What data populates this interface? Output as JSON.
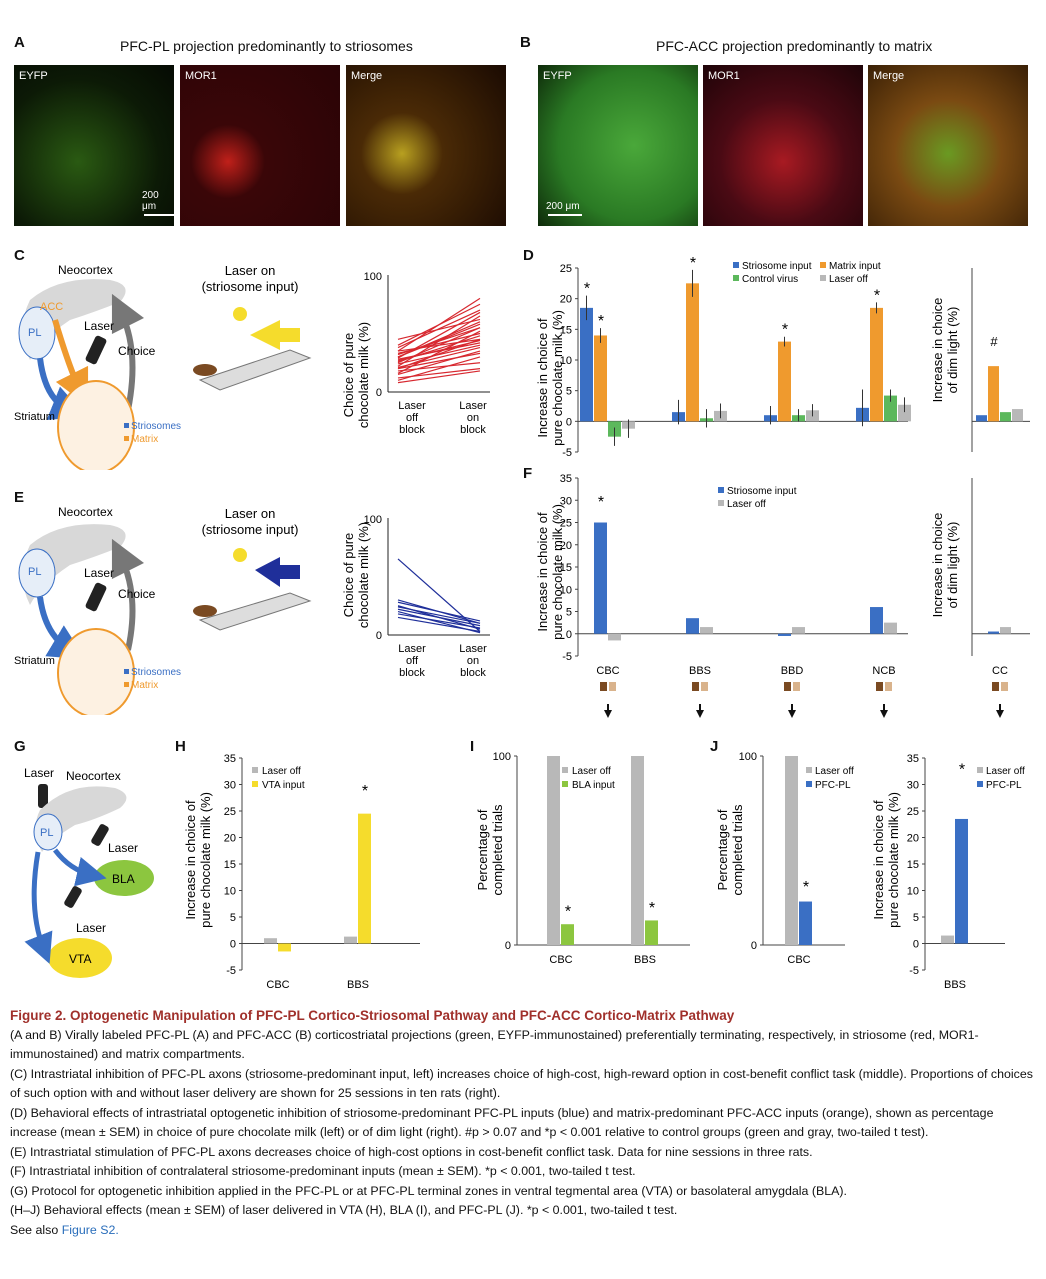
{
  "panelA": {
    "letter": "A",
    "title": "PFC-PL projection predominantly to striosomes",
    "images": [
      {
        "label": "EYFP"
      },
      {
        "label": "MOR1"
      },
      {
        "label": "Merge"
      }
    ],
    "scale": "200 μm"
  },
  "panelB": {
    "letter": "B",
    "title": "PFC-ACC projection predominantly to matrix",
    "images": [
      {
        "label": "EYFP"
      },
      {
        "label": "MOR1"
      },
      {
        "label": "Merge"
      }
    ],
    "scale": "200 μm"
  },
  "panelC": {
    "letter": "C",
    "neocortex": "Neocortex",
    "acc": "ACC",
    "pl": "PL",
    "laser": "Laser",
    "choice": "Choice",
    "striatum": "Striatum",
    "striosomes": "Striosomes",
    "matrix": "Matrix",
    "maze_title_1": "Laser on",
    "maze_title_2": "(striosome input)",
    "ylabel_1": "Choice of pure",
    "ylabel_2": "chocolate milk (%)",
    "ytick_top": "100",
    "ytick_bot": "0",
    "x1": [
      "Laser",
      "off",
      "block"
    ],
    "x2": [
      "Laser",
      "on",
      "block"
    ]
  },
  "panelE": {
    "letter": "E",
    "neocortex": "Neocortex",
    "pl": "PL",
    "laser": "Laser",
    "choice": "Choice",
    "striatum": "Striatum",
    "striosomes": "Striosomes",
    "matrix": "Matrix",
    "maze_title_1": "Laser on",
    "maze_title_2": "(striosome input)",
    "ylabel_1": "Choice of pure",
    "ylabel_2": "chocolate milk (%)",
    "ytick_top": "100",
    "ytick_bot": "0",
    "x1": [
      "Laser",
      "off",
      "block"
    ],
    "x2": [
      "Laser",
      "on",
      "block"
    ]
  },
  "panelD": {
    "letter": "D",
    "ylabel_1": "Increase in choice of",
    "ylabel_2": "pure chocolate milk (%)",
    "ylabel_right_1": "Increase in choice",
    "ylabel_right_2": "of dim light (%)",
    "legend": [
      "Striosome input",
      "Matrix input",
      "Control virus",
      "Laser off"
    ]
  },
  "panelF": {
    "letter": "F",
    "ylabel_1": "Increase in choice of",
    "ylabel_2": "pure chocolate milk (%)",
    "ylabel_right_1": "Increase in choice",
    "ylabel_right_2": "of dim light (%)",
    "legend": [
      "Striosome input",
      "Laser off"
    ],
    "categories": [
      "CBC",
      "BBS",
      "BBD",
      "NCB",
      "CC"
    ]
  },
  "panelG": {
    "letter": "G",
    "laser": "Laser",
    "neocortex": "Neocortex",
    "pl": "PL",
    "bla": "BLA",
    "vta": "VTA"
  },
  "panelH": {
    "letter": "H",
    "ylabel_1": "Increase in choice of",
    "ylabel_2": "pure chocolate milk (%)",
    "legend": [
      "Laser off",
      "VTA input"
    ]
  },
  "panelI": {
    "letter": "I",
    "ylabel_1": "Percentage of",
    "ylabel_2": "completed trials",
    "legend": [
      "Laser off",
      "BLA input"
    ]
  },
  "panelJ": {
    "letter": "J",
    "ylabel_1": "Percentage of",
    "ylabel_2": "completed trials",
    "ylabel2_1": "Increase in choice of",
    "ylabel2_2": "pure chocolate milk (%)",
    "legend": [
      "Laser off",
      "PFC-PL"
    ]
  },
  "colors": {
    "striosome": "#3a6fc4",
    "matrix": "#ef9a2e",
    "control": "#5cb85c",
    "laser_off": "#b8b8b8",
    "vta": "#f5dc2c",
    "bla": "#8cc63f",
    "caption_title": "#a0302b",
    "link": "#2a6ebb"
  },
  "chart_data": [
    {
      "type": "bar",
      "panel": "D",
      "categories": [
        "CBC",
        "BBS",
        "BBD",
        "NCB"
      ],
      "ylim": [
        -5,
        25
      ],
      "yticks": [
        -5,
        0,
        5,
        10,
        15,
        20,
        25
      ],
      "series": [
        {
          "name": "Striosome input",
          "values": [
            18.5,
            1.5,
            1,
            2.2
          ],
          "errors": [
            2,
            2,
            1.5,
            3
          ]
        },
        {
          "name": "Matrix input",
          "values": [
            14,
            22.5,
            13,
            18.5
          ],
          "errors": [
            1.2,
            2.2,
            0.8,
            0.9
          ]
        },
        {
          "name": "Control virus",
          "values": [
            -2.5,
            0.5,
            1,
            4.2
          ],
          "errors": [
            1.5,
            1.5,
            1,
            1
          ]
        },
        {
          "name": "Laser off",
          "values": [
            -1.2,
            1.7,
            1.8,
            2.7
          ],
          "errors": [
            1.5,
            1.2,
            1,
            1.2
          ]
        }
      ],
      "annotations": [
        "*",
        "*",
        "*",
        "*",
        "*"
      ]
    },
    {
      "type": "bar",
      "panel": "D-right",
      "categories": [
        "CC"
      ],
      "series": [
        {
          "name": "Striosome input",
          "values": [
            1
          ]
        },
        {
          "name": "Matrix input",
          "values": [
            9
          ]
        },
        {
          "name": "Control virus",
          "values": [
            1.5
          ]
        },
        {
          "name": "Laser off",
          "values": [
            2
          ]
        }
      ],
      "annotations": [
        "#"
      ]
    },
    {
      "type": "bar",
      "panel": "F",
      "categories": [
        "CBC",
        "BBS",
        "BBD",
        "NCB"
      ],
      "ylim": [
        -5,
        35
      ],
      "yticks": [
        -5,
        0,
        5,
        10,
        15,
        20,
        25,
        30,
        35
      ],
      "series": [
        {
          "name": "Striosome input",
          "values": [
            25,
            3.5,
            -0.5,
            6
          ]
        },
        {
          "name": "Laser off",
          "values": [
            -1.5,
            1.5,
            1.5,
            2.5
          ]
        }
      ],
      "annotations": [
        "*"
      ]
    },
    {
      "type": "bar",
      "panel": "F-right",
      "categories": [
        "CC"
      ],
      "series": [
        {
          "name": "Striosome input",
          "values": [
            0.5
          ]
        },
        {
          "name": "Laser off",
          "values": [
            1.5
          ]
        }
      ]
    },
    {
      "type": "bar",
      "panel": "H",
      "categories": [
        "CBC",
        "BBS"
      ],
      "ylim": [
        -5,
        35
      ],
      "yticks": [
        -5,
        0,
        5,
        10,
        15,
        20,
        25,
        30,
        35
      ],
      "series": [
        {
          "name": "Laser off",
          "values": [
            1,
            1.3
          ]
        },
        {
          "name": "VTA input",
          "values": [
            -1.5,
            24.5
          ]
        }
      ],
      "annotations": [
        "*"
      ]
    },
    {
      "type": "bar",
      "panel": "I",
      "categories": [
        "CBC",
        "BBS"
      ],
      "ylim": [
        0,
        100
      ],
      "yticks": [
        0,
        100
      ],
      "series": [
        {
          "name": "Laser off",
          "values": [
            100,
            100
          ]
        },
        {
          "name": "BLA input",
          "values": [
            11,
            13
          ]
        }
      ],
      "annotations": [
        "*",
        "*"
      ]
    },
    {
      "type": "bar",
      "panel": "J-left",
      "categories": [
        "CBC"
      ],
      "ylim": [
        0,
        100
      ],
      "yticks": [
        0,
        100
      ],
      "series": [
        {
          "name": "Laser off",
          "values": [
            100
          ]
        },
        {
          "name": "PFC-PL",
          "values": [
            23
          ]
        }
      ],
      "annotations": [
        "*"
      ]
    },
    {
      "type": "bar",
      "panel": "J-right",
      "categories": [
        "BBS"
      ],
      "ylim": [
        -5,
        35
      ],
      "yticks": [
        -5,
        0,
        5,
        10,
        15,
        20,
        25,
        30,
        35
      ],
      "series": [
        {
          "name": "Laser off",
          "values": [
            1.5
          ]
        },
        {
          "name": "PFC-PL",
          "values": [
            23.5
          ]
        }
      ],
      "annotations": [
        "*"
      ]
    }
  ],
  "caption": {
    "title": "Figure 2.  Optogenetic Manipulation of PFC-PL Cortico-Striosomal Pathway and PFC-ACC Cortico-Matrix Pathway",
    "p1": "(A and B) Virally labeled PFC-PL (A) and PFC-ACC (B) corticostriatal projections (green, EYFP-immunostained) preferentially terminating, respectively, in striosome (red, MOR1-immunostained) and matrix compartments.",
    "p2": "(C) Intrastriatal inhibition of PFC-PL axons (striosome-predominant input, left) increases choice of high-cost, high-reward option in cost-benefit conflict task (middle). Proportions of choices of such option with and without laser delivery are shown for 25 sessions in ten rats (right).",
    "p3": "(D) Behavioral effects of intrastriatal optogenetic inhibition of striosome-predominant PFC-PL inputs (blue) and matrix-predominant PFC-ACC inputs (orange), shown as percentage increase (mean ± SEM) in choice of pure chocolate milk (left) or of dim light (right). #p > 0.07 and *p < 0.001 relative to control groups (green and gray, two-tailed t test).",
    "p4": "(E) Intrastriatal stimulation of PFC-PL axons decreases choice of high-cost options in cost-benefit conflict task. Data for nine sessions in three rats.",
    "p5": "(F) Intrastriatal inhibition of contralateral striosome-predominant inputs (mean ± SEM). *p < 0.001, two-tailed t test.",
    "p6": "(G) Protocol for optogenetic inhibition applied in the PFC-PL or at PFC-PL terminal zones in ventral tegmental area (VTA) or basolateral amygdala (BLA).",
    "p7": "(H–J) Behavioral effects (mean ± SEM) of laser delivered in VTA (H), BLA (I), and PFC-PL (J). *p < 0.001, two-tailed t test.",
    "see_also": "See also",
    "link": "Figure S2."
  }
}
